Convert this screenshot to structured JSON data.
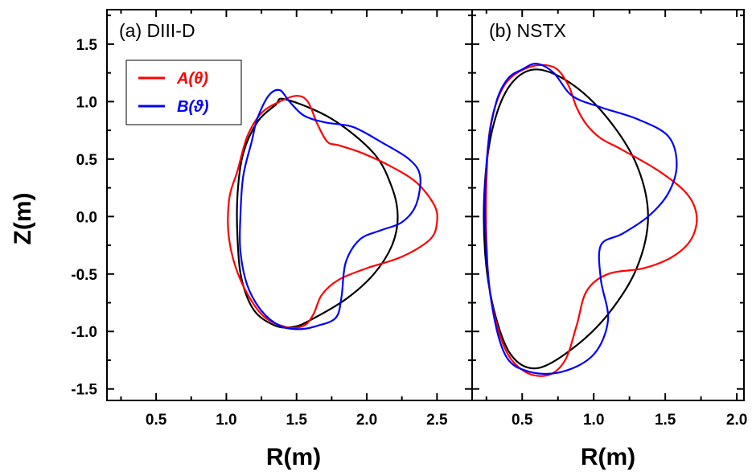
{
  "chart_data": [
    {
      "type": "line",
      "panel_label": "(a) DIII-D",
      "xlabel": "R(m)",
      "ylabel": "Z(m)",
      "xlim": [
        0.15,
        2.75
      ],
      "ylim": [
        -1.6,
        1.8
      ],
      "xticks": [
        "0.5",
        "1.0",
        "1.5",
        "2.0",
        "2.5"
      ],
      "yticks": [
        "1.5",
        "1.0",
        "0.5",
        "0.0",
        "-0.5",
        "-1.0",
        "-1.5"
      ],
      "legend": {
        "placement": "top-left",
        "entries": [
          {
            "label": "A(θ)",
            "color": "#ff0000"
          },
          {
            "label": "B(ϑ)",
            "color": "#0000ff"
          }
        ]
      },
      "series": [
        {
          "color": "#000000",
          "points": [
            [
              1.42,
              1.02
            ],
            [
              1.75,
              0.85
            ],
            [
              2.05,
              0.55
            ],
            [
              2.18,
              0.25
            ],
            [
              2.22,
              0.0
            ],
            [
              2.18,
              -0.25
            ],
            [
              2.05,
              -0.5
            ],
            [
              1.85,
              -0.72
            ],
            [
              1.6,
              -0.9
            ],
            [
              1.48,
              -0.96
            ],
            [
              1.35,
              -0.95
            ],
            [
              1.2,
              -0.82
            ],
            [
              1.11,
              -0.55
            ],
            [
              1.08,
              -0.2
            ],
            [
              1.08,
              0.2
            ],
            [
              1.12,
              0.55
            ],
            [
              1.22,
              0.82
            ],
            [
              1.35,
              0.97
            ],
            [
              1.42,
              1.02
            ]
          ]
        },
        {
          "color": "#ff0000",
          "points": [
            [
              1.38,
              1.0
            ],
            [
              1.5,
              1.05
            ],
            [
              1.58,
              1.0
            ],
            [
              1.65,
              0.8
            ],
            [
              1.72,
              0.65
            ],
            [
              1.8,
              0.62
            ],
            [
              1.95,
              0.56
            ],
            [
              2.15,
              0.45
            ],
            [
              2.35,
              0.3
            ],
            [
              2.48,
              0.1
            ],
            [
              2.5,
              -0.05
            ],
            [
              2.45,
              -0.2
            ],
            [
              2.25,
              -0.35
            ],
            [
              2.0,
              -0.45
            ],
            [
              1.8,
              -0.55
            ],
            [
              1.68,
              -0.68
            ],
            [
              1.62,
              -0.85
            ],
            [
              1.55,
              -0.95
            ],
            [
              1.42,
              -0.96
            ],
            [
              1.25,
              -0.85
            ],
            [
              1.1,
              -0.55
            ],
            [
              1.02,
              -0.2
            ],
            [
              1.02,
              0.15
            ],
            [
              1.08,
              0.4
            ],
            [
              1.15,
              0.7
            ],
            [
              1.25,
              0.9
            ],
            [
              1.38,
              1.0
            ]
          ]
        },
        {
          "color": "#0000ff",
          "points": [
            [
              1.3,
              1.05
            ],
            [
              1.38,
              1.1
            ],
            [
              1.45,
              1.0
            ],
            [
              1.55,
              0.88
            ],
            [
              1.7,
              0.82
            ],
            [
              1.9,
              0.78
            ],
            [
              2.1,
              0.65
            ],
            [
              2.3,
              0.5
            ],
            [
              2.38,
              0.35
            ],
            [
              2.35,
              0.1
            ],
            [
              2.25,
              -0.05
            ],
            [
              2.1,
              -0.12
            ],
            [
              1.95,
              -0.2
            ],
            [
              1.85,
              -0.4
            ],
            [
              1.82,
              -0.7
            ],
            [
              1.78,
              -0.88
            ],
            [
              1.65,
              -0.95
            ],
            [
              1.52,
              -0.98
            ],
            [
              1.38,
              -0.95
            ],
            [
              1.25,
              -0.82
            ],
            [
              1.15,
              -0.6
            ],
            [
              1.1,
              -0.3
            ],
            [
              1.1,
              0.0
            ],
            [
              1.12,
              0.35
            ],
            [
              1.18,
              0.65
            ],
            [
              1.22,
              0.85
            ],
            [
              1.3,
              1.05
            ]
          ]
        }
      ]
    },
    {
      "type": "line",
      "panel_label": "(b) NSTX",
      "xlabel": "R(m)",
      "xlim": [
        0.15,
        2.05
      ],
      "ylim": [
        -1.6,
        1.8
      ],
      "xticks": [
        "0.5",
        "1.0",
        "1.5",
        "2.0"
      ],
      "series": [
        {
          "color": "#000000",
          "points": [
            [
              0.6,
              1.28
            ],
            [
              0.85,
              1.15
            ],
            [
              1.1,
              0.85
            ],
            [
              1.3,
              0.45
            ],
            [
              1.38,
              0.0
            ],
            [
              1.3,
              -0.45
            ],
            [
              1.1,
              -0.85
            ],
            [
              0.85,
              -1.15
            ],
            [
              0.6,
              -1.32
            ],
            [
              0.42,
              -1.2
            ],
            [
              0.3,
              -0.8
            ],
            [
              0.24,
              -0.3
            ],
            [
              0.24,
              0.3
            ],
            [
              0.3,
              0.8
            ],
            [
              0.42,
              1.15
            ],
            [
              0.6,
              1.28
            ]
          ]
        },
        {
          "color": "#ff0000",
          "points": [
            [
              0.55,
              1.3
            ],
            [
              0.72,
              1.3
            ],
            [
              0.82,
              1.15
            ],
            [
              0.88,
              0.95
            ],
            [
              0.95,
              0.8
            ],
            [
              1.05,
              0.68
            ],
            [
              1.2,
              0.58
            ],
            [
              1.45,
              0.4
            ],
            [
              1.65,
              0.2
            ],
            [
              1.72,
              0.0
            ],
            [
              1.68,
              -0.2
            ],
            [
              1.55,
              -0.35
            ],
            [
              1.35,
              -0.45
            ],
            [
              1.1,
              -0.5
            ],
            [
              0.95,
              -0.65
            ],
            [
              0.88,
              -0.95
            ],
            [
              0.8,
              -1.25
            ],
            [
              0.68,
              -1.38
            ],
            [
              0.52,
              -1.35
            ],
            [
              0.38,
              -1.15
            ],
            [
              0.28,
              -0.7
            ],
            [
              0.25,
              -0.2
            ],
            [
              0.25,
              0.3
            ],
            [
              0.28,
              0.8
            ],
            [
              0.38,
              1.15
            ],
            [
              0.55,
              1.3
            ]
          ]
        },
        {
          "color": "#0000ff",
          "points": [
            [
              0.5,
              1.28
            ],
            [
              0.6,
              1.33
            ],
            [
              0.72,
              1.25
            ],
            [
              0.85,
              1.05
            ],
            [
              1.05,
              0.95
            ],
            [
              1.3,
              0.85
            ],
            [
              1.52,
              0.7
            ],
            [
              1.58,
              0.45
            ],
            [
              1.52,
              0.2
            ],
            [
              1.38,
              0.0
            ],
            [
              1.2,
              -0.15
            ],
            [
              1.05,
              -0.25
            ],
            [
              1.05,
              -0.55
            ],
            [
              1.1,
              -0.9
            ],
            [
              1.0,
              -1.2
            ],
            [
              0.78,
              -1.35
            ],
            [
              0.55,
              -1.35
            ],
            [
              0.38,
              -1.2
            ],
            [
              0.28,
              -0.7
            ],
            [
              0.24,
              0.0
            ],
            [
              0.26,
              0.6
            ],
            [
              0.32,
              1.0
            ],
            [
              0.4,
              1.2
            ],
            [
              0.5,
              1.28
            ]
          ]
        }
      ]
    }
  ]
}
